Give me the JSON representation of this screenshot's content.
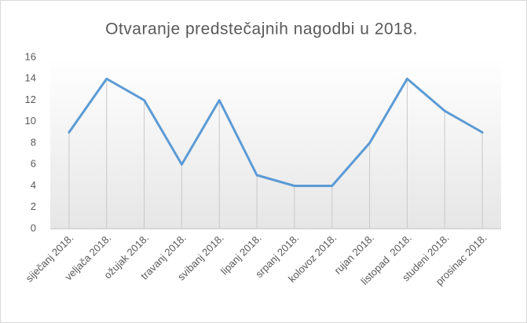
{
  "chart_data": {
    "type": "line",
    "title": "Otvaranje predstečajnih nagodbi u 2018.",
    "categories": [
      "siječanj 2018.",
      "veljača 2018.",
      "ožujak 2018.",
      "travanj 2018.",
      "svibanj 2018.",
      "lipanj 2018.",
      "srpanj 2018.",
      "kolovoz 2018.",
      "rujan 2018.",
      "listopad  2018.",
      "studeni 2018.",
      "prosinac 2018."
    ],
    "values": [
      9,
      14,
      12,
      6,
      12,
      5,
      4,
      4,
      8,
      14,
      11,
      9
    ],
    "color": "#5b9bd5",
    "ylim": [
      0,
      16
    ],
    "yticks": [
      0,
      2,
      4,
      6,
      8,
      10,
      12,
      14,
      16
    ],
    "drop_lines": true
  }
}
